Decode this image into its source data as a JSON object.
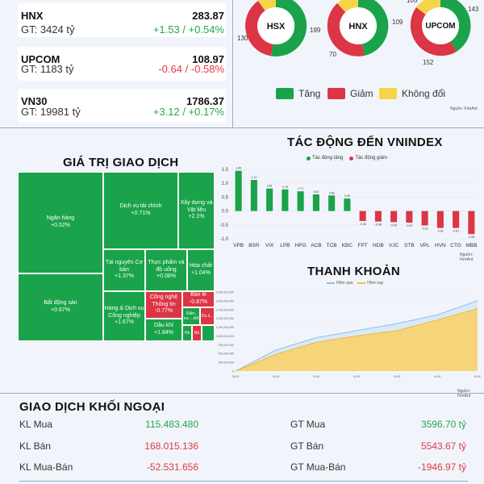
{
  "indices": [
    {
      "name": "HNX",
      "value": "283.87",
      "gt": "GT: 3424 tỷ",
      "change": "+1.53 / +0.54%",
      "dir": "up"
    },
    {
      "name": "UPCOM",
      "value": "108.97",
      "gt": "GT: 1183 tỷ",
      "change": "-0.64 / -0.58%",
      "dir": "down"
    },
    {
      "name": "VN30",
      "value": "1786.37",
      "gt": "GT: 19981 tỷ",
      "change": "+3.12 / +0.17%",
      "dir": "up"
    }
  ],
  "donuts": [
    {
      "label": "HSX",
      "left": "130",
      "right": "199",
      "top": ""
    },
    {
      "label": "HNX",
      "left": "70",
      "right": "109",
      "top": ""
    },
    {
      "label": "UPCOM",
      "left": "",
      "right": "143",
      "bottom": "152",
      "top": "105"
    }
  ],
  "breadth_legend": {
    "up": "Tăng",
    "down": "Giảm",
    "flat": "Không đổi"
  },
  "colors": {
    "up": "#1aa34a",
    "down": "#dc3545",
    "flat": "#f5d547",
    "accent": "#f0c040"
  },
  "source": "Nguồn: FireAnt",
  "treemap": {
    "title": "GIÁ TRỊ GIAO DỊCH",
    "cells": [
      {
        "name": "Ngân hàng",
        "chg": "+0.52%",
        "dir": "up"
      },
      {
        "name": "Bất động sản",
        "chg": "+0.67%",
        "dir": "up"
      },
      {
        "name": "Dịch vụ tài chính",
        "chg": "+0.71%",
        "dir": "up"
      },
      {
        "name": "Xây dựng và Vật liệu",
        "chg": "+2.1%",
        "dir": "up"
      },
      {
        "name": "Tài nguyên Cơ bản",
        "chg": "+1.37%",
        "dir": "up"
      },
      {
        "name": "Thực phẩm và đồ uống",
        "chg": "+0.08%",
        "dir": "up"
      },
      {
        "name": "Hóa chất",
        "chg": "+1.04%",
        "dir": "up"
      },
      {
        "name": "Hàng & Dịch vụ Công nghiệp",
        "chg": "+1.67%",
        "dir": "up"
      },
      {
        "name": "Công nghệ Thông tin",
        "chg": "-0.77%",
        "dir": "down"
      },
      {
        "name": "Bán lẻ",
        "chg": "-0.87%",
        "dir": "down"
      },
      {
        "name": "Dầu khí",
        "chg": "+1.84%",
        "dir": "up"
      },
      {
        "name": "Điện, nư... dốt",
        "chg": "",
        "dir": "up"
      },
      {
        "name": "Du lị...",
        "chg": "",
        "dir": "down"
      },
      {
        "name": "Hà",
        "chg": "",
        "dir": "up"
      },
      {
        "name": "Bả",
        "chg": "",
        "dir": "up"
      }
    ]
  },
  "impact": {
    "title": "TÁC ĐỘNG ĐẾN VNINDEX",
    "legend_up": "Tác động tăng",
    "legend_down": "Tác động giảm"
  },
  "liquidity": {
    "title": "THANH KHOẢN",
    "legend_prev": "Hôm qua",
    "legend_today": "Hôm nay"
  },
  "chart_data": [
    {
      "type": "bar",
      "categories": [
        "VPB",
        "BSR",
        "VIX",
        "LPB",
        "HPG",
        "ACB",
        "TCB",
        "KBC",
        "FPT",
        "HDB",
        "VJC",
        "STB",
        "VPL",
        "HVN",
        "CTG",
        "MBB"
      ],
      "values": [
        1.45,
        1.12,
        0.81,
        0.78,
        0.71,
        0.6,
        0.56,
        0.45,
        -0.36,
        -0.38,
        -0.4,
        -0.42,
        -0.52,
        -0.61,
        -0.61,
        -0.83
      ],
      "yticks": [
        "1.5",
        "1.0",
        "0.5",
        "0.0",
        "-0.5",
        "-1.0"
      ],
      "ylim": [
        -1.0,
        1.5
      ]
    },
    {
      "type": "area",
      "x": [
        "09:00",
        "10:00",
        "11:00",
        "12:00",
        "13:00",
        "14:00",
        "15:00"
      ],
      "yticks": [
        "2,250,000,000",
        "2,000,000,000",
        "1,750,000,000",
        "1,500,000,000",
        "1,250,000,000",
        "1,000,000,000",
        "750,000,000",
        "500,000,000",
        "250,000,000",
        "0"
      ],
      "ylim": [
        0,
        2250000000
      ],
      "series": [
        {
          "name": "Hôm qua",
          "values": [
            0,
            600000000,
            950000000,
            1150000000,
            1350000000,
            1600000000,
            2000000000
          ]
        },
        {
          "name": "Hôm nay",
          "values": [
            0,
            480000000,
            820000000,
            1000000000,
            1150000000,
            1450000000,
            1780000000
          ]
        }
      ]
    }
  ],
  "foreign": {
    "title": "GIAO DỊCH KHỐI NGOẠI",
    "rows": [
      {
        "l_label": "KL Mua",
        "l_val": "115.483.480",
        "l_dir": "up",
        "r_label": "GT Mua",
        "r_val": "3596.70 tỷ",
        "r_dir": "up"
      },
      {
        "l_label": "KL Bán",
        "l_val": "168.015.136",
        "l_dir": "down",
        "r_label": "GT Bán",
        "r_val": "5543.67 tỷ",
        "r_dir": "down"
      },
      {
        "l_label": "KL Mua-Bán",
        "l_val": "-52.531.656",
        "l_dir": "down",
        "r_label": "GT Mua-Bán",
        "r_val": "-1946.97 tỷ",
        "r_dir": "down"
      }
    ]
  }
}
